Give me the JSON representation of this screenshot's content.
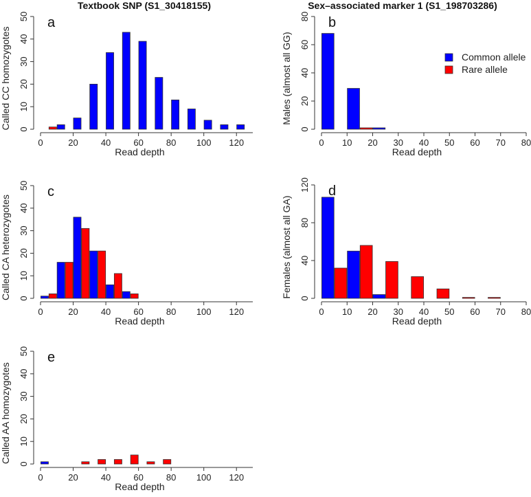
{
  "colors": {
    "common": "#0000FF",
    "rare": "#FF0000"
  },
  "chart_data": [
    {
      "type": "bar",
      "panel": "a",
      "title": "Textbook SNP (S1_30418155)",
      "xlabel": "Read depth",
      "ylabel": "Called CC homozygotes",
      "xlim": [
        0,
        130
      ],
      "ylim": [
        0,
        50
      ],
      "xticks": [
        0,
        20,
        40,
        60,
        80,
        100,
        120
      ],
      "yticks": [
        0,
        10,
        20,
        30,
        40,
        50
      ],
      "bin_width": 5,
      "bars": [
        {
          "x": 5,
          "value": 1,
          "allele": "rare"
        },
        {
          "x": 10,
          "value": 2,
          "allele": "common"
        },
        {
          "x": 20,
          "value": 5,
          "allele": "common"
        },
        {
          "x": 30,
          "value": 20,
          "allele": "common"
        },
        {
          "x": 40,
          "value": 34,
          "allele": "common"
        },
        {
          "x": 50,
          "value": 43,
          "allele": "common"
        },
        {
          "x": 60,
          "value": 39,
          "allele": "common"
        },
        {
          "x": 70,
          "value": 23,
          "allele": "common"
        },
        {
          "x": 80,
          "value": 13,
          "allele": "common"
        },
        {
          "x": 90,
          "value": 9,
          "allele": "common"
        },
        {
          "x": 100,
          "value": 4,
          "allele": "common"
        },
        {
          "x": 110,
          "value": 2,
          "allele": "common"
        },
        {
          "x": 120,
          "value": 2,
          "allele": "common"
        }
      ]
    },
    {
      "type": "bar",
      "panel": "b",
      "title": "Sex–associated marker 1 (S1_198703286)",
      "xlabel": "Read depth",
      "ylabel": "Males (almost all GG)",
      "xlim": [
        0,
        80
      ],
      "ylim": [
        0,
        80
      ],
      "xticks": [
        0,
        10,
        20,
        30,
        40,
        50,
        60,
        70,
        80
      ],
      "yticks": [
        0,
        20,
        40,
        60,
        80
      ],
      "bin_width": 5,
      "legend": {
        "position": "top-right",
        "entries": [
          {
            "label": "Common allele",
            "allele": "common"
          },
          {
            "label": "Rare allele",
            "allele": "rare"
          }
        ]
      },
      "bars": [
        {
          "x": 0,
          "value": 68,
          "allele": "common"
        },
        {
          "x": 10,
          "value": 29,
          "allele": "common"
        },
        {
          "x": 15,
          "value": 1,
          "allele": "rare"
        },
        {
          "x": 20,
          "value": 1,
          "allele": "common"
        }
      ]
    },
    {
      "type": "bar",
      "panel": "c",
      "title": "",
      "xlabel": "Read depth",
      "ylabel": "Called CA heterozygotes",
      "xlim": [
        0,
        130
      ],
      "ylim": [
        0,
        50
      ],
      "xticks": [
        0,
        20,
        40,
        60,
        80,
        100,
        120
      ],
      "yticks": [
        0,
        10,
        20,
        30,
        40,
        50
      ],
      "bin_width": 5,
      "bars": [
        {
          "x": 0,
          "value": 1,
          "allele": "common"
        },
        {
          "x": 5,
          "value": 2,
          "allele": "rare"
        },
        {
          "x": 10,
          "value": 16,
          "allele": "common"
        },
        {
          "x": 15,
          "value": 16,
          "allele": "rare"
        },
        {
          "x": 20,
          "value": 36,
          "allele": "common"
        },
        {
          "x": 25,
          "value": 31,
          "allele": "rare"
        },
        {
          "x": 30,
          "value": 21,
          "allele": "common"
        },
        {
          "x": 35,
          "value": 21,
          "allele": "rare"
        },
        {
          "x": 40,
          "value": 6,
          "allele": "common"
        },
        {
          "x": 45,
          "value": 11,
          "allele": "rare"
        },
        {
          "x": 50,
          "value": 3,
          "allele": "common"
        },
        {
          "x": 55,
          "value": 2,
          "allele": "rare"
        }
      ]
    },
    {
      "type": "bar",
      "panel": "d",
      "title": "",
      "xlabel": "Read depth",
      "ylabel": "Females (almost all GA)",
      "xlim": [
        0,
        80
      ],
      "ylim": [
        0,
        120
      ],
      "xticks": [
        0,
        10,
        20,
        30,
        40,
        50,
        60,
        70,
        80
      ],
      "yticks": [
        0,
        40,
        80,
        120
      ],
      "bin_width": 5,
      "bars": [
        {
          "x": 0,
          "value": 107,
          "allele": "common"
        },
        {
          "x": 5,
          "value": 32,
          "allele": "rare"
        },
        {
          "x": 10,
          "value": 50,
          "allele": "common"
        },
        {
          "x": 15,
          "value": 56,
          "allele": "rare"
        },
        {
          "x": 20,
          "value": 4,
          "allele": "common"
        },
        {
          "x": 25,
          "value": 39,
          "allele": "rare"
        },
        {
          "x": 35,
          "value": 23,
          "allele": "rare"
        },
        {
          "x": 45,
          "value": 10,
          "allele": "rare"
        },
        {
          "x": 55,
          "value": 1,
          "allele": "rare"
        },
        {
          "x": 65,
          "value": 1,
          "allele": "rare"
        }
      ]
    },
    {
      "type": "bar",
      "panel": "e",
      "title": "",
      "xlabel": "Read depth",
      "ylabel": "Called AA homozygotes",
      "xlim": [
        0,
        130
      ],
      "ylim": [
        0,
        50
      ],
      "xticks": [
        0,
        20,
        40,
        60,
        80,
        100,
        120
      ],
      "yticks": [
        0,
        10,
        20,
        30,
        40,
        50
      ],
      "bin_width": 5,
      "bars": [
        {
          "x": 0,
          "value": 1,
          "allele": "common"
        },
        {
          "x": 25,
          "value": 1,
          "allele": "rare"
        },
        {
          "x": 35,
          "value": 2,
          "allele": "rare"
        },
        {
          "x": 45,
          "value": 2,
          "allele": "rare"
        },
        {
          "x": 55,
          "value": 4,
          "allele": "rare"
        },
        {
          "x": 65,
          "value": 1,
          "allele": "rare"
        },
        {
          "x": 75,
          "value": 2,
          "allele": "rare"
        }
      ]
    }
  ]
}
